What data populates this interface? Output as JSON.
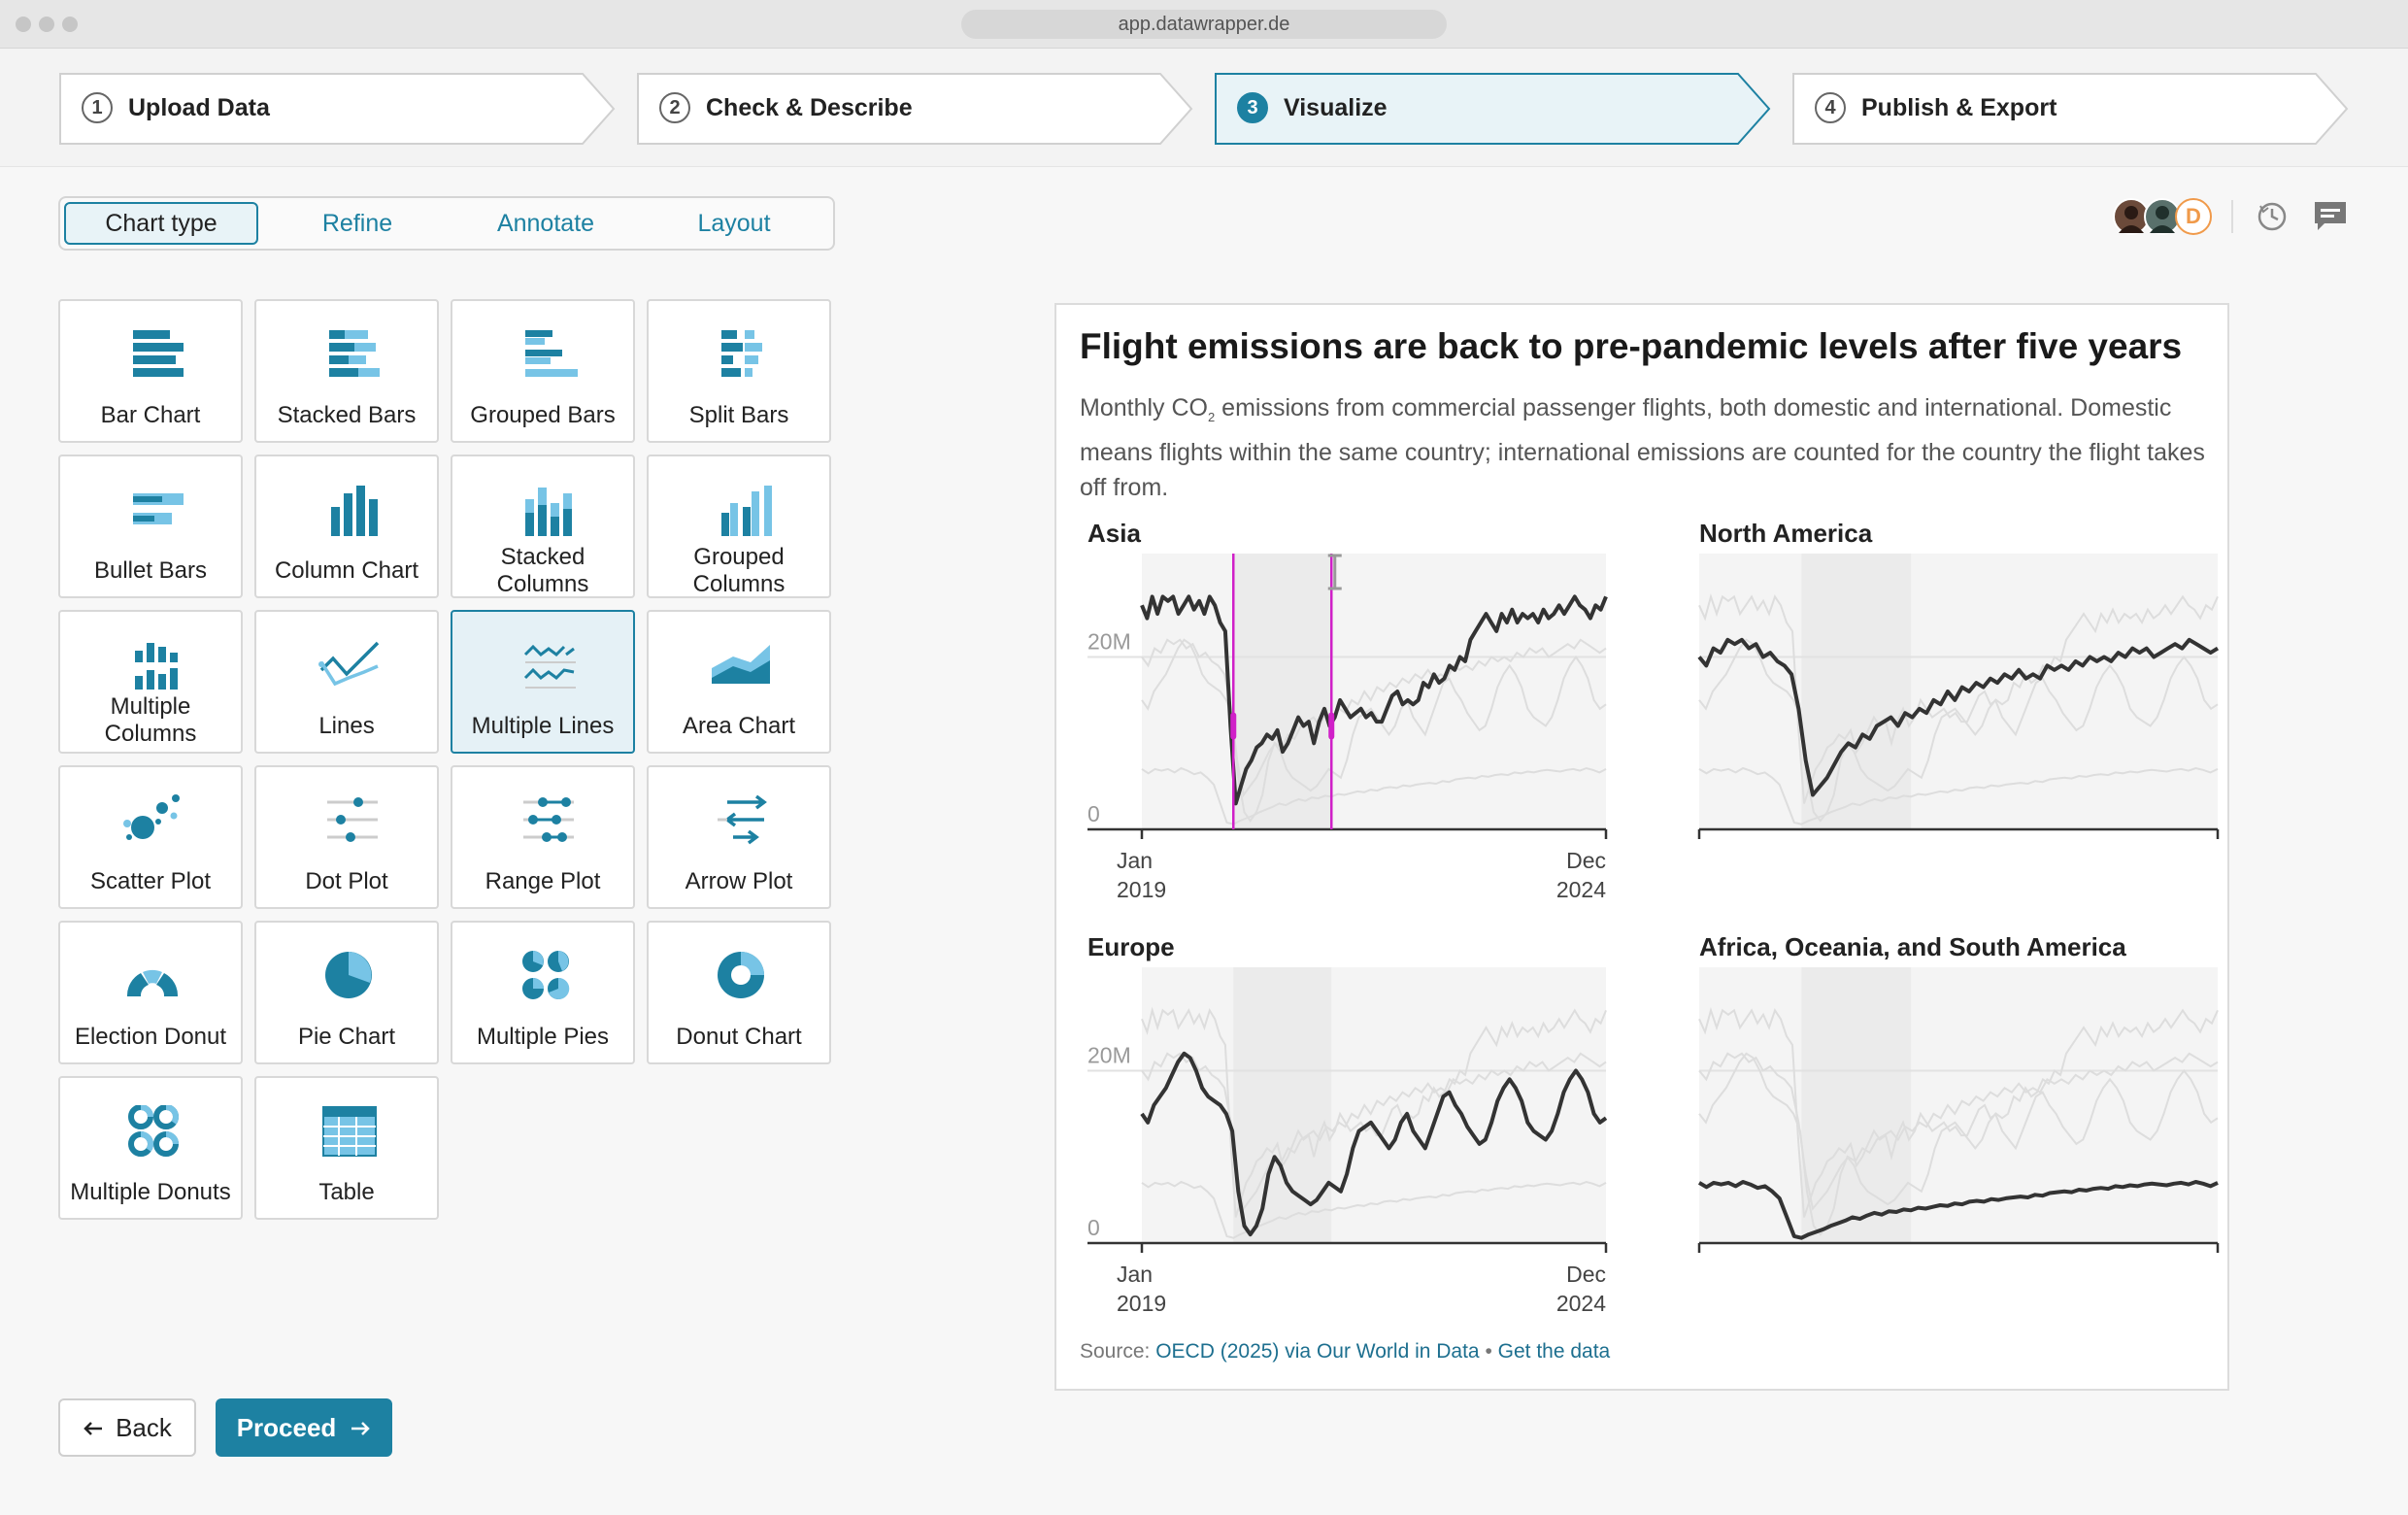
{
  "browser": {
    "url": "app.datawrapper.de"
  },
  "steps": [
    {
      "num": "1",
      "label": "Upload Data"
    },
    {
      "num": "2",
      "label": "Check & Describe"
    },
    {
      "num": "3",
      "label": "Visualize"
    },
    {
      "num": "4",
      "label": "Publish & Export"
    }
  ],
  "tabs": [
    "Chart type",
    "Refine",
    "Annotate",
    "Layout"
  ],
  "chart_types": [
    {
      "label": "Bar Chart",
      "icon": "bar-chart-icon"
    },
    {
      "label": "Stacked Bars",
      "icon": "stacked-bars-icon"
    },
    {
      "label": "Grouped Bars",
      "icon": "grouped-bars-icon"
    },
    {
      "label": "Split Bars",
      "icon": "split-bars-icon"
    },
    {
      "label": "Bullet Bars",
      "icon": "bullet-bars-icon"
    },
    {
      "label": "Column Chart",
      "icon": "column-chart-icon"
    },
    {
      "label": "Stacked Columns",
      "icon": "stacked-columns-icon"
    },
    {
      "label": "Grouped Columns",
      "icon": "grouped-columns-icon"
    },
    {
      "label": "Multiple Columns",
      "icon": "multiple-columns-icon"
    },
    {
      "label": "Lines",
      "icon": "lines-icon"
    },
    {
      "label": "Multiple Lines",
      "icon": "multiple-lines-icon"
    },
    {
      "label": "Area Chart",
      "icon": "area-chart-icon"
    },
    {
      "label": "Scatter Plot",
      "icon": "scatter-plot-icon"
    },
    {
      "label": "Dot Plot",
      "icon": "dot-plot-icon"
    },
    {
      "label": "Range Plot",
      "icon": "range-plot-icon"
    },
    {
      "label": "Arrow Plot",
      "icon": "arrow-plot-icon"
    },
    {
      "label": "Election Donut",
      "icon": "election-donut-icon"
    },
    {
      "label": "Pie Chart",
      "icon": "pie-chart-icon"
    },
    {
      "label": "Multiple Pies",
      "icon": "multiple-pies-icon"
    },
    {
      "label": "Donut Chart",
      "icon": "donut-chart-icon"
    },
    {
      "label": "Multiple Donuts",
      "icon": "multiple-donuts-icon"
    },
    {
      "label": "Table",
      "icon": "table-icon"
    }
  ],
  "selected_chart_type": "Multiple Lines",
  "buttons": {
    "back": "Back",
    "proceed": "Proceed"
  },
  "toolbar_icons": [
    "history-icon",
    "comment-icon"
  ],
  "avatars": {
    "initial": "D"
  },
  "colors": {
    "accent": "#1d81a2",
    "highlight": "#d020c8",
    "line": "#333333",
    "context": "#dddddd",
    "band": "#ebebeb"
  },
  "chart": {
    "title": "Flight emissions are back to pre-pandemic levels after five years",
    "desc_part1": "Monthly CO",
    "desc_sub": "2",
    "desc_part2": " emissions from commercial passenger flights, both domestic and international. Domestic means flights within the same country; international emissions are counted for the country the flight takes off from.",
    "source_prefix": "Source: ",
    "source_link": "OECD (2025) via Our World in Data",
    "source_sep": " • ",
    "get_data": "Get the data"
  },
  "chart_data": {
    "type": "line",
    "x_range": [
      "2019-01",
      "2024-12"
    ],
    "x_tick_labels": [
      [
        "Jan",
        "2019"
      ],
      [
        "Dec",
        "2024"
      ]
    ],
    "y_ticks": [
      {
        "value": 0,
        "label": "0"
      },
      {
        "value": 20,
        "label": "20M"
      }
    ],
    "ylim": [
      0,
      32
    ],
    "panels_grid": "2x2",
    "shaded_period": [
      "2020-03",
      "2021-06"
    ],
    "selection_markers": [
      "2020-03",
      "2021-06"
    ],
    "panels": [
      {
        "name": "Asia",
        "show_y_axis": true,
        "show_x_labels": true,
        "values": [
          26,
          24.5,
          27,
          25,
          27,
          26.5,
          27,
          25,
          26,
          27,
          25.5,
          26.5,
          25,
          27,
          26,
          24,
          23,
          12,
          3,
          5,
          7,
          8,
          9.5,
          10,
          11,
          10.5,
          11.5,
          9,
          10,
          11.5,
          13,
          12,
          12.5,
          10,
          12.5,
          14,
          12,
          13,
          15,
          14,
          13,
          13.5,
          14,
          13,
          13.5,
          12.5,
          12.5,
          14,
          15.5,
          16,
          14.5,
          15,
          14.5,
          15,
          17,
          16.5,
          18,
          17,
          17.5,
          19,
          18.5,
          20,
          19.5,
          22,
          23,
          24,
          25,
          24,
          23,
          25,
          24,
          25.5,
          24,
          25,
          24.5,
          25,
          24,
          25.5,
          24.5,
          25,
          26,
          25,
          26,
          27,
          26,
          25.5,
          24.5,
          26,
          25.5,
          27
        ]
      },
      {
        "name": "North America",
        "show_y_axis": false,
        "show_x_labels": false,
        "values": [
          20,
          19,
          21,
          20.5,
          22,
          21.5,
          22,
          21,
          21.5,
          20,
          20.5,
          19.5,
          19,
          18,
          14,
          8,
          4,
          5,
          6,
          7.5,
          9,
          10,
          9.5,
          11,
          10.5,
          12,
          12.5,
          13,
          12,
          13.5,
          13,
          14,
          13.5,
          15,
          14.5,
          16,
          15,
          16.5,
          16,
          17,
          16.5,
          17.5,
          17,
          18,
          17.5,
          18.5,
          17.5,
          18,
          17.5,
          19,
          18.5,
          19,
          18.5,
          19.5,
          19,
          20,
          19.5,
          20,
          19.5,
          20.5,
          20,
          21,
          20.5,
          21,
          20,
          20.5,
          21,
          21.5,
          21,
          22,
          21.5,
          21,
          20.5,
          21
        ]
      },
      {
        "name": "Europe",
        "show_y_axis": true,
        "show_x_labels": true,
        "values": [
          15,
          14,
          16,
          17,
          18,
          19.5,
          21,
          22,
          21.5,
          20,
          18,
          17,
          16.5,
          16,
          15,
          13,
          6,
          2,
          1,
          2,
          4,
          8,
          10,
          9,
          7,
          6,
          5.5,
          5,
          4.5,
          5,
          6,
          7,
          6.5,
          6,
          8,
          11,
          13,
          13.5,
          14,
          13,
          12,
          11,
          12,
          14,
          15,
          13,
          12,
          11,
          13,
          15,
          17,
          17.5,
          16,
          15,
          13.5,
          12.5,
          11.5,
          12,
          14,
          16.5,
          18,
          19,
          18,
          16.5,
          14,
          13,
          12.5,
          12,
          13,
          15,
          17.5,
          19,
          20,
          19,
          17.5,
          15,
          14,
          14.5
        ]
      },
      {
        "name": "Africa, Oceania, and South America",
        "show_y_axis": false,
        "show_x_labels": false,
        "values": [
          7,
          6.5,
          7,
          6.8,
          7,
          6.6,
          7.1,
          6.8,
          6.4,
          6.6,
          6,
          5.2,
          3,
          0.8,
          0.6,
          1,
          1.3,
          1.6,
          2,
          2.3,
          2.6,
          3,
          2.8,
          3.2,
          3.5,
          3.3,
          3.7,
          3.6,
          3.9,
          3.8,
          4.1,
          4,
          4.2,
          4.4,
          4.3,
          4.6,
          4.5,
          4.8,
          4.9,
          4.8,
          5.1,
          5,
          5.2,
          5.3,
          5.4,
          5.3,
          5.6,
          5.5,
          5.8,
          5.9,
          6,
          5.9,
          6.2,
          6.1,
          6.3,
          6.4,
          6.3,
          6.6,
          6.5,
          6.7,
          6.6,
          6.8,
          6.9,
          6.8,
          6.7,
          6.9,
          7,
          6.8,
          7.1,
          6.9,
          6.6,
          7
        ]
      }
    ]
  }
}
